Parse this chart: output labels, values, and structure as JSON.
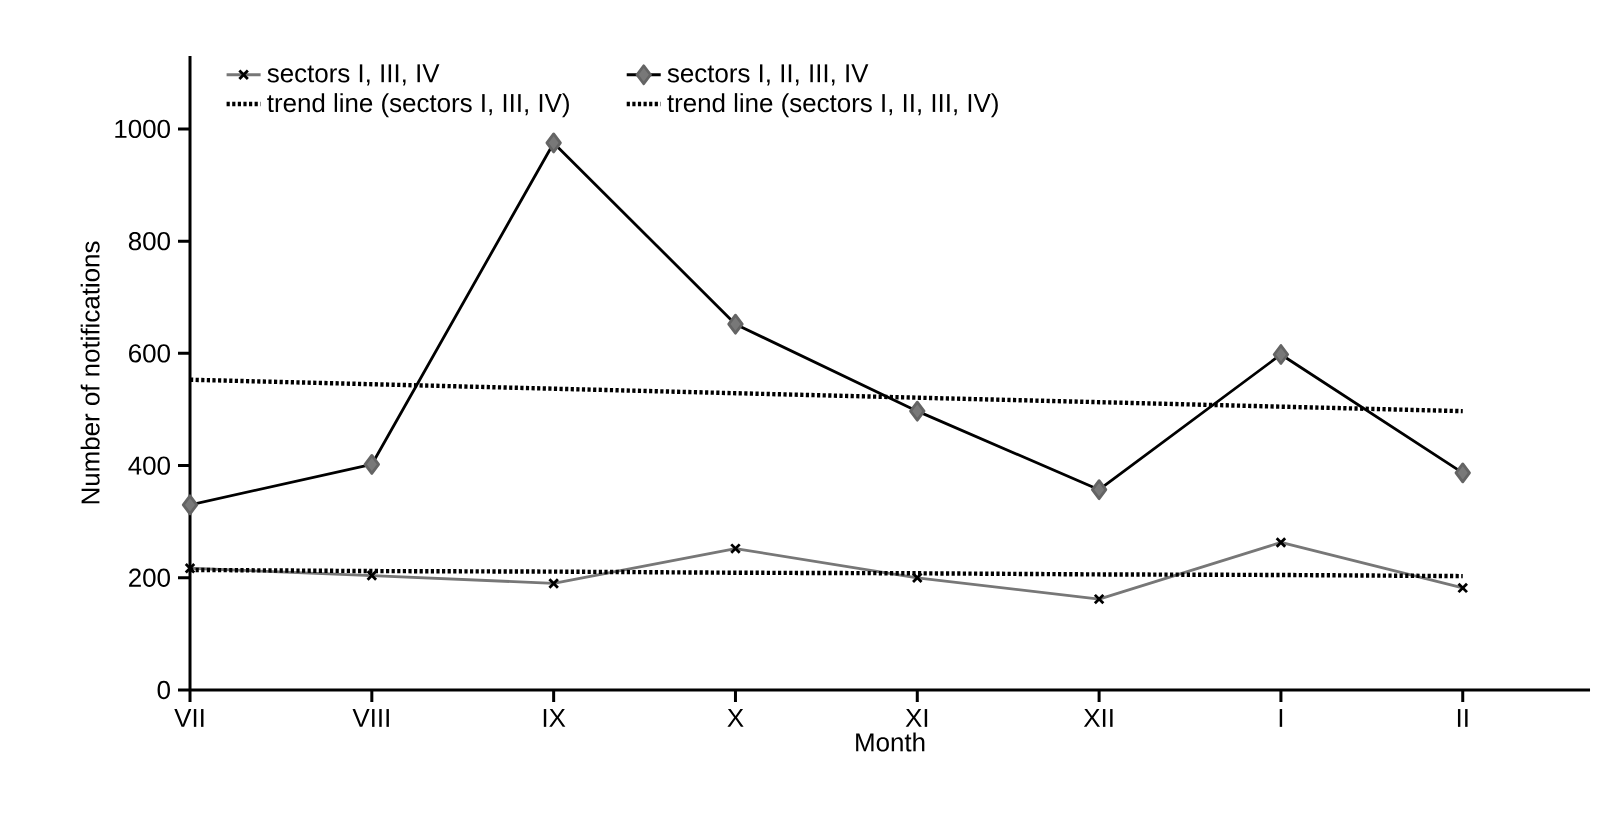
{
  "chart_data": {
    "type": "line",
    "xlabel": "Month",
    "ylabel": "Number of notifications",
    "categories": [
      "VII",
      "VIII",
      "IX",
      "X",
      "XI",
      "XII",
      "I",
      "II"
    ],
    "ylim": [
      0,
      1130
    ],
    "yticks": [
      0,
      200,
      400,
      600,
      800,
      1000
    ],
    "grid": false,
    "legend": "top",
    "series": [
      {
        "name": "sectors I, III, IV",
        "color": "#777777",
        "marker": "cross",
        "line_style": "solid",
        "values": [
          217,
          204,
          190,
          252,
          200,
          162,
          263,
          182
        ]
      },
      {
        "name": "sectors I, II, III, IV",
        "color": "#000000",
        "marker": "diamond",
        "line_style": "solid",
        "values": [
          330,
          402,
          975,
          652,
          497,
          357,
          598,
          387
        ]
      },
      {
        "name": "trend line (sectors I, III, IV)",
        "color": "#000000",
        "marker": "none",
        "line_style": "dotted",
        "values": [
          214,
          212,
          211,
          209,
          208,
          206,
          205,
          203
        ]
      },
      {
        "name": "trend line (sectors I, II, III, IV)",
        "color": "#000000",
        "marker": "none",
        "line_style": "dotted",
        "values": [
          553,
          545,
          537,
          529,
          521,
          513,
          505,
          497
        ]
      }
    ]
  }
}
